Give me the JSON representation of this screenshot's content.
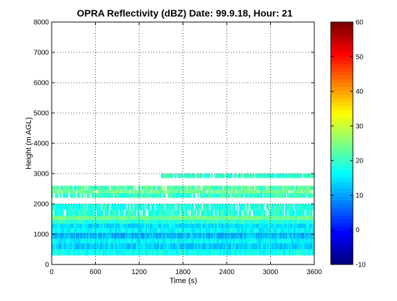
{
  "chart_data": {
    "type": "heatmap",
    "title": "OPRA Reflectivity (dBZ)  Date: 99.9.18, Hour: 21",
    "xlabel": "Time (s)",
    "ylabel": "Height (m AGL)",
    "xlim": [
      0,
      3600
    ],
    "ylim": [
      0,
      8000
    ],
    "xticks": [
      "0",
      "600",
      "1200",
      "1800",
      "2400",
      "3000",
      "3600"
    ],
    "yticks": [
      "0",
      "1000",
      "2000",
      "3000",
      "4000",
      "5000",
      "6000",
      "7000",
      "8000"
    ],
    "grid": true,
    "colorbar": {
      "clim": [
        -10,
        60
      ],
      "ticks": [
        "-10",
        "0",
        "10",
        "20",
        "30",
        "40",
        "50",
        "60"
      ],
      "colormap": "jet"
    },
    "layers": [
      {
        "ybottom": 300,
        "ytop": 500,
        "t_start": 0,
        "t_end": 3600,
        "dbz": 17
      },
      {
        "ybottom": 500,
        "ytop": 700,
        "t_start": 0,
        "t_end": 3600,
        "dbz": 13
      },
      {
        "ybottom": 700,
        "ytop": 850,
        "t_start": 0,
        "t_end": 3600,
        "dbz": 16
      },
      {
        "ybottom": 850,
        "ytop": 1050,
        "t_start": 0,
        "t_end": 3600,
        "dbz": 12
      },
      {
        "ybottom": 1050,
        "ytop": 1200,
        "t_start": 0,
        "t_end": 3600,
        "dbz": 16
      },
      {
        "ybottom": 1200,
        "ytop": 1350,
        "t_start": 0,
        "t_end": 3600,
        "dbz": 14
      },
      {
        "ybottom": 1350,
        "ytop": 1480,
        "t_start": 0,
        "t_end": 3600,
        "dbz": 19
      },
      {
        "ybottom": 1480,
        "ytop": 1600,
        "t_start": 0,
        "t_end": 3600,
        "dbz": 24
      },
      {
        "ybottom": 1600,
        "ytop": 1800,
        "t_start": 0,
        "t_end": 3600,
        "dbz": 19
      },
      {
        "ybottom": 1800,
        "ytop": 2000,
        "t_start": 0,
        "t_end": 3600,
        "dbz": 18
      },
      {
        "ybottom": 2200,
        "ytop": 2350,
        "t_start": 0,
        "t_end": 3600,
        "dbz": 20
      },
      {
        "ybottom": 2350,
        "ytop": 2450,
        "t_start": 0,
        "t_end": 3600,
        "dbz": 24
      },
      {
        "ybottom": 2450,
        "ytop": 2600,
        "t_start": 0,
        "t_end": 3600,
        "dbz": 22
      },
      {
        "ybottom": 2850,
        "ytop": 3000,
        "t_start": 1500,
        "t_end": 3600,
        "dbz": 20
      }
    ]
  }
}
